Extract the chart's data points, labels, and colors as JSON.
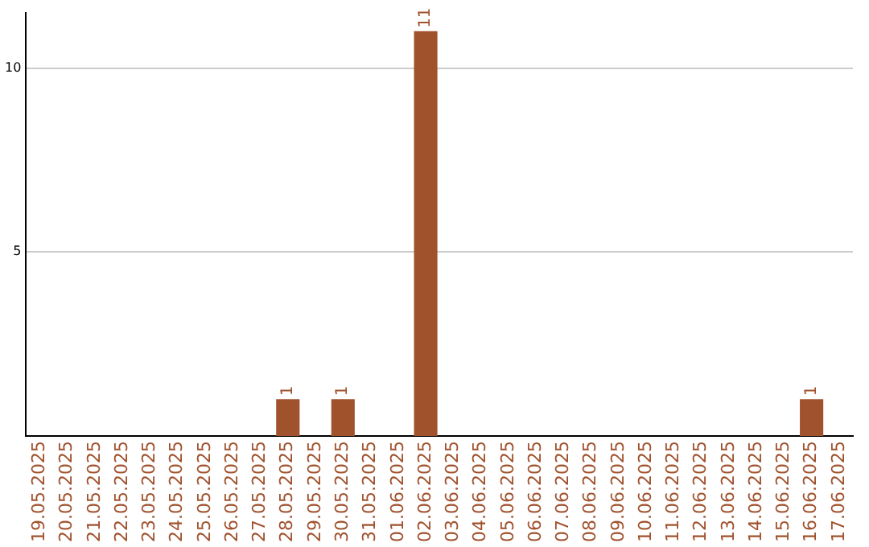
{
  "chart_data": {
    "type": "bar",
    "categories": [
      "19.05.2025",
      "20.05.2025",
      "21.05.2025",
      "22.05.2025",
      "23.05.2025",
      "24.05.2025",
      "25.05.2025",
      "26.05.2025",
      "27.05.2025",
      "28.05.2025",
      "29.05.2025",
      "30.05.2025",
      "31.05.2025",
      "01.06.2025",
      "02.06.2025",
      "03.06.2025",
      "04.06.2025",
      "05.06.2025",
      "06.06.2025",
      "07.06.2025",
      "08.06.2025",
      "09.06.2025",
      "10.06.2025",
      "11.06.2025",
      "12.06.2025",
      "13.06.2025",
      "14.06.2025",
      "15.06.2025",
      "16.06.2025",
      "17.06.2025"
    ],
    "values": [
      0,
      0,
      0,
      0,
      0,
      0,
      0,
      0,
      0,
      1,
      0,
      1,
      0,
      0,
      11,
      0,
      0,
      0,
      0,
      0,
      0,
      0,
      0,
      0,
      0,
      0,
      0,
      0,
      1,
      0
    ],
    "value_labels": [
      null,
      null,
      null,
      null,
      null,
      null,
      null,
      null,
      null,
      "1",
      null,
      "1",
      null,
      null,
      "11",
      null,
      null,
      null,
      null,
      null,
      null,
      null,
      null,
      null,
      null,
      null,
      null,
      null,
      "1",
      null
    ],
    "color": "#a0522d",
    "ylim": [
      0,
      11.5
    ],
    "yticks": [
      5,
      10
    ],
    "grid": "y"
  }
}
